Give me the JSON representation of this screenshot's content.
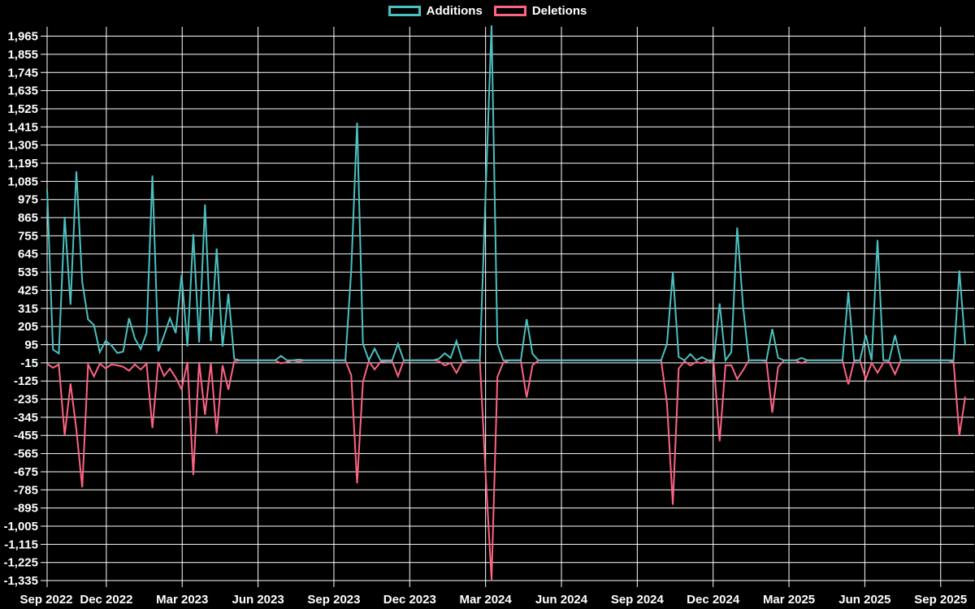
{
  "legend": {
    "items": [
      {
        "label": "Additions",
        "color": "#4bc0c0"
      },
      {
        "label": "Deletions",
        "color": "#ff6384"
      }
    ]
  },
  "chart_data": {
    "type": "line",
    "title": "",
    "x_unit": "week",
    "x_range": "Sep 2022 to Sep 2025",
    "x_tick_labels": [
      "Sep 2022",
      "Dec 2022",
      "Mar 2023",
      "Jun 2023",
      "Sep 2023",
      "Dec 2023",
      "Mar 2024",
      "Jun 2024",
      "Sep 2024",
      "Dec 2024",
      "Mar 2025",
      "Jun 2025",
      "Sep 2025"
    ],
    "y_tick_labels": [
      "1,965",
      "1,855",
      "1,745",
      "1,635",
      "1,525",
      "1,415",
      "1,305",
      "1,195",
      "1,085",
      "975",
      "865",
      "755",
      "645",
      "535",
      "425",
      "315",
      "205",
      "95",
      "-15",
      "-125",
      "-235",
      "-345",
      "-455",
      "-565",
      "-675",
      "-785",
      "-895",
      "-1,005",
      "-1,115",
      "-1,225",
      "-1,335"
    ],
    "y_tick_max": 1965,
    "y_tick_step": 110,
    "ylim": [
      -1335,
      1965
    ],
    "grid": true,
    "legend_position": "top",
    "background": "#000000",
    "grid_color": "#ffffff",
    "text_color": "#ffffff",
    "series": [
      {
        "name": "Additions",
        "color": "#4bc0c0",
        "values": [
          1035,
          66,
          42,
          870,
          337,
          1146,
          476,
          248,
          214,
          50,
          117,
          90,
          45,
          53,
          256,
          133,
          68,
          166,
          1120,
          55,
          150,
          256,
          166,
          519,
          84,
          765,
          109,
          945,
          117,
          678,
          84,
          404,
          10,
          0,
          0,
          0,
          0,
          0,
          0,
          0,
          27,
          0,
          0,
          5,
          0,
          0,
          0,
          0,
          0,
          0,
          0,
          0,
          545,
          1440,
          100,
          0,
          71,
          0,
          0,
          0,
          100,
          0,
          0,
          0,
          0,
          0,
          0,
          10,
          43,
          15,
          117,
          0,
          0,
          0,
          0,
          1030,
          2030,
          100,
          0,
          0,
          0,
          0,
          250,
          40,
          0,
          0,
          0,
          0,
          0,
          0,
          0,
          0,
          0,
          0,
          0,
          0,
          0,
          0,
          0,
          0,
          0,
          0,
          0,
          0,
          0,
          0,
          100,
          535,
          20,
          0,
          38,
          0,
          19,
          0,
          0,
          345,
          0,
          50,
          805,
          330,
          0,
          0,
          0,
          0,
          190,
          15,
          0,
          0,
          0,
          15,
          0,
          0,
          0,
          0,
          0,
          0,
          0,
          415,
          0,
          0,
          153,
          0,
          730,
          0,
          0,
          153,
          0,
          0,
          0,
          0,
          0,
          0,
          0,
          0,
          0,
          0,
          545,
          90
        ]
      },
      {
        "name": "Deletions",
        "color": "#ff6384",
        "values": [
          -20,
          -45,
          -25,
          -455,
          -140,
          -420,
          -770,
          -25,
          -97,
          -20,
          -48,
          -25,
          -30,
          -39,
          -63,
          -25,
          -55,
          -20,
          -410,
          -10,
          -95,
          -50,
          -105,
          -175,
          -10,
          -695,
          -10,
          -330,
          -15,
          -445,
          -30,
          -178,
          -5,
          0,
          0,
          0,
          0,
          0,
          0,
          0,
          -18,
          -10,
          0,
          -8,
          0,
          0,
          0,
          0,
          0,
          0,
          0,
          0,
          -90,
          -745,
          -130,
          -5,
          -55,
          -10,
          -5,
          -5,
          -96,
          0,
          0,
          0,
          0,
          0,
          0,
          -5,
          -31,
          -15,
          -76,
          -10,
          0,
          0,
          0,
          -700,
          -1330,
          -100,
          -15,
          0,
          0,
          0,
          -225,
          -30,
          0,
          0,
          0,
          0,
          0,
          0,
          0,
          0,
          0,
          0,
          0,
          0,
          0,
          0,
          0,
          0,
          0,
          0,
          0,
          0,
          0,
          0,
          -260,
          -875,
          -50,
          -5,
          -31,
          -10,
          -17,
          0,
          -20,
          -490,
          -30,
          -30,
          -113,
          -60,
          0,
          0,
          0,
          -5,
          -317,
          -40,
          0,
          0,
          0,
          -17,
          0,
          0,
          0,
          0,
          0,
          0,
          0,
          -145,
          -5,
          0,
          -113,
          -15,
          -75,
          -15,
          -10,
          -83,
          0,
          0,
          0,
          0,
          0,
          0,
          0,
          0,
          0,
          -10,
          -455,
          -220
        ]
      }
    ]
  }
}
